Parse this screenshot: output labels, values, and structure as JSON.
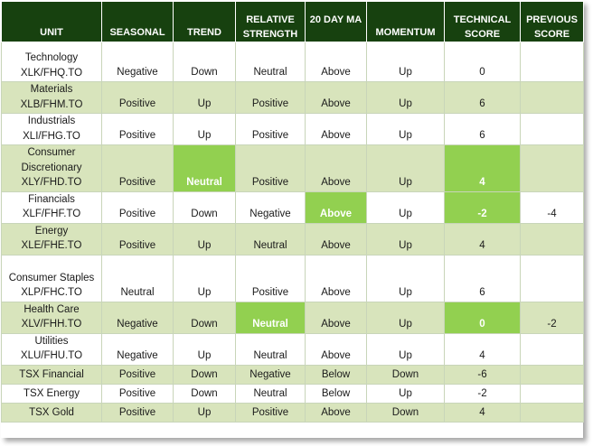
{
  "headers": [
    {
      "label": "UNIT"
    },
    {
      "label": "SEASONAL"
    },
    {
      "label": "TREND"
    },
    {
      "label": "RELATIVE STRENGTH"
    },
    {
      "label": "20 DAY MA"
    },
    {
      "label": "MOMENTUM"
    },
    {
      "label": "TECHNICAL SCORE"
    },
    {
      "label": "PREVIOUS SCORE"
    }
  ],
  "rows": [
    {
      "unit_l1": "Technology",
      "unit_l2": "XLK/FHQ.TO",
      "unit_l3": "",
      "seasonal": "Negative",
      "trend": "Down",
      "rs": "Neutral",
      "ma20": "Above",
      "momentum": "Up",
      "score": "0",
      "prev": ""
    },
    {
      "unit_l1": "Materials",
      "unit_l2": "XLB/FHM.TO",
      "unit_l3": "",
      "seasonal": "Positive",
      "trend": "Up",
      "rs": "Positive",
      "ma20": "Above",
      "momentum": "Up",
      "score": "6",
      "prev": ""
    },
    {
      "unit_l1": "Industrials",
      "unit_l2": "XLI/FHG.TO",
      "unit_l3": "",
      "seasonal": "Positive",
      "trend": "Up",
      "rs": "Positive",
      "ma20": "Above",
      "momentum": "Up",
      "score": "6",
      "prev": ""
    },
    {
      "unit_l1": "Consumer",
      "unit_l2": "Discretionary",
      "unit_l3": "XLY/FHD.TO",
      "seasonal": "Positive",
      "trend": "Neutral",
      "rs": "Positive",
      "ma20": "Above",
      "momentum": "Up",
      "score": "4",
      "prev": ""
    },
    {
      "unit_l1": "Financials",
      "unit_l2": "XLF/FHF.TO",
      "unit_l3": "",
      "seasonal": "Positive",
      "trend": "Down",
      "rs": "Negative",
      "ma20": "Above",
      "momentum": "Up",
      "score": "-2",
      "prev": "-4"
    },
    {
      "unit_l1": "Energy",
      "unit_l2": "XLE/FHE.TO",
      "unit_l3": "",
      "seasonal": "Positive",
      "trend": "Up",
      "rs": "Neutral",
      "ma20": "Above",
      "momentum": "Up",
      "score": "4",
      "prev": ""
    },
    {
      "unit_l1": "Consumer Staples",
      "unit_l2": "XLP/FHC.TO",
      "unit_l3": "",
      "seasonal": "Neutral",
      "trend": "Up",
      "rs": "Positive",
      "ma20": "Above",
      "momentum": "Up",
      "score": "6",
      "prev": ""
    },
    {
      "unit_l1": "Health Care",
      "unit_l2": "XLV/FHH.TO",
      "unit_l3": "",
      "seasonal": "Negative",
      "trend": "Down",
      "rs": "Neutral",
      "ma20": "Above",
      "momentum": "Up",
      "score": "0",
      "prev": "-2"
    },
    {
      "unit_l1": "Utilities",
      "unit_l2": "XLU/FHU.TO",
      "unit_l3": "",
      "seasonal": "Negative",
      "trend": "Up",
      "rs": "Neutral",
      "ma20": "Above",
      "momentum": "Up",
      "score": "4",
      "prev": ""
    },
    {
      "unit_l1": "TSX Financial",
      "unit_l2": "",
      "unit_l3": "",
      "seasonal": "Positive",
      "trend": "Down",
      "rs": "Negative",
      "ma20": "Below",
      "momentum": "Down",
      "score": "-6",
      "prev": ""
    },
    {
      "unit_l1": "TSX Energy",
      "unit_l2": "",
      "unit_l3": "",
      "seasonal": "Positive",
      "trend": "Down",
      "rs": "Neutral",
      "ma20": "Below",
      "momentum": "Up",
      "score": "-2",
      "prev": ""
    },
    {
      "unit_l1": "TSX Gold",
      "unit_l2": "",
      "unit_l3": "",
      "seasonal": "Positive",
      "trend": "Up",
      "rs": "Positive",
      "ma20": "Above",
      "momentum": "Down",
      "score": "4",
      "prev": ""
    }
  ],
  "colors": {
    "header_bg": "#17410f",
    "alt_row": "#d8e4bc",
    "highlight": "#92d050"
  }
}
